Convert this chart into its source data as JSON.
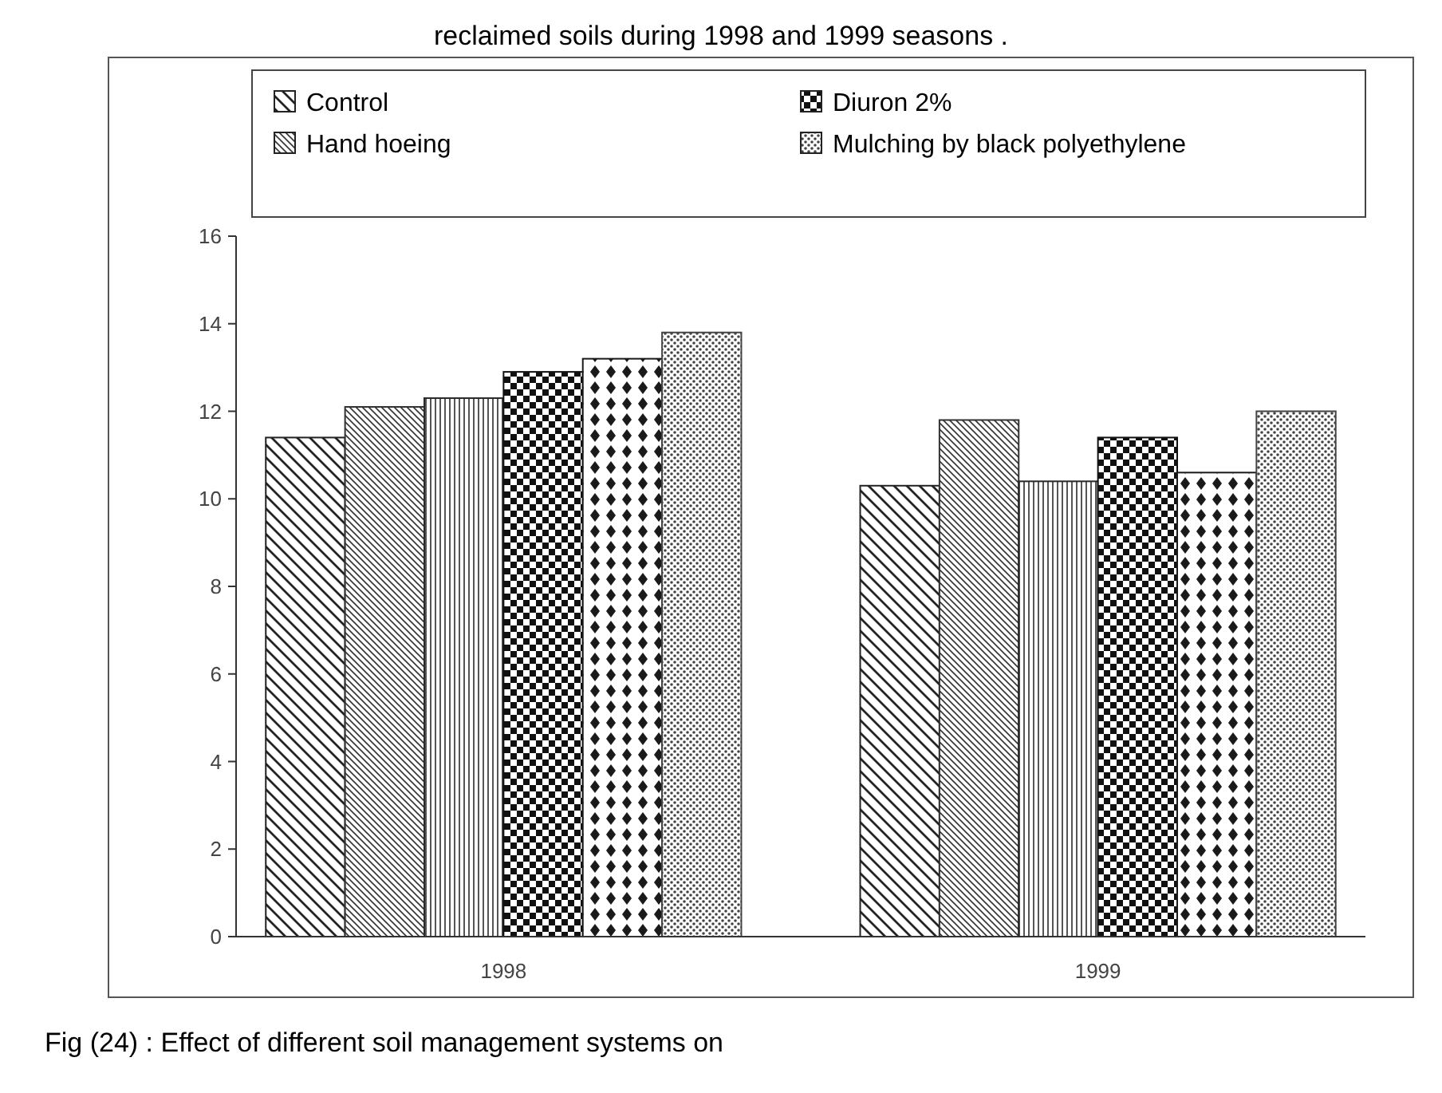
{
  "chart_data": {
    "type": "bar",
    "title": "reclaimed soils during 1998 and 1999 seasons .",
    "categories": [
      "1998",
      "1999"
    ],
    "series": [
      {
        "name": "Control",
        "color": "#222222",
        "values": [
          11.4,
          10.3
        ]
      },
      {
        "name": "Hand hoeing",
        "color": "#333333",
        "values": [
          12.1,
          11.8
        ]
      },
      {
        "color": "#2a2a2a",
        "values": [
          12.3,
          10.4
        ]
      },
      {
        "name": "Diuron 2%",
        "color": "#111111",
        "values": [
          12.9,
          11.4
        ]
      },
      {
        "color": "#1a1a1a",
        "values": [
          13.2,
          10.6
        ]
      },
      {
        "name": "Mulching by black  polyethylene",
        "color": "#444444",
        "values": [
          13.8,
          12.0
        ]
      }
    ],
    "ylim": [
      0,
      16
    ],
    "yticks": [
      0,
      2,
      4,
      6,
      8,
      10,
      12,
      14,
      16
    ],
    "grid": false,
    "legend": "top",
    "annotations": [
      "Fig (24) : Effect of different soil management systems on"
    ]
  }
}
